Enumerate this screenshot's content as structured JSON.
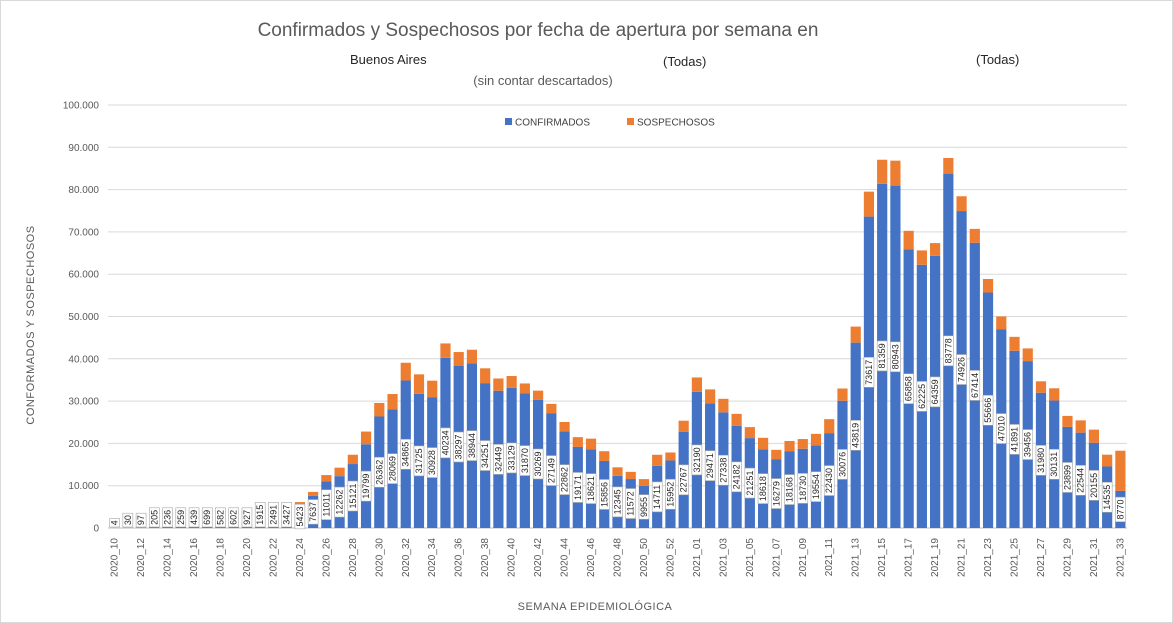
{
  "chart_data": {
    "type": "bar",
    "stacked": true,
    "title": "Confirmados y Sospechosos por fecha de apertura por semana en",
    "filters": [
      "Buenos Aires",
      "(Todas)",
      "(Todas)"
    ],
    "subtitle": "(sin contar descartados)",
    "xlabel": "SEMANA EPIDEMIOLÓGICA",
    "ylabel": "CONFORMADOS  Y SOSPECHOSOS",
    "ylim": [
      0,
      100000
    ],
    "yticks": [
      "0",
      "10.000",
      "20.000",
      "30.000",
      "40.000",
      "50.000",
      "60.000",
      "70.000",
      "80.000",
      "90.000",
      "100.000"
    ],
    "legend_position": "top-center",
    "grid": true,
    "categories": [
      "2020_10",
      "2020_11",
      "2020_12",
      "2020_13",
      "2020_14",
      "2020_15",
      "2020_16",
      "2020_17",
      "2020_18",
      "2020_19",
      "2020_20",
      "2020_21",
      "2020_22",
      "2020_23",
      "2020_24",
      "2020_25",
      "2020_26",
      "2020_27",
      "2020_28",
      "2020_29",
      "2020_30",
      "2020_31",
      "2020_32",
      "2020_33",
      "2020_34",
      "2020_35",
      "2020_36",
      "2020_37",
      "2020_38",
      "2020_39",
      "2020_40",
      "2020_41",
      "2020_42",
      "2020_43",
      "2020_44",
      "2020_45",
      "2020_46",
      "2020_47",
      "2020_48",
      "2020_49",
      "2020_50",
      "2020_51",
      "2020_52",
      "2020_53",
      "2021_01",
      "2021_02",
      "2021_03",
      "2021_04",
      "2021_05",
      "2021_06",
      "2021_07",
      "2021_08",
      "2021_09",
      "2021_10",
      "2021_11",
      "2021_12",
      "2021_13",
      "2021_14",
      "2021_15",
      "2021_16",
      "2021_17",
      "2021_18",
      "2021_19",
      "2021_20",
      "2021_21",
      "2021_22",
      "2021_23",
      "2021_24",
      "2021_25",
      "2021_26",
      "2021_27",
      "2021_28",
      "2021_29",
      "2021_30",
      "2021_31",
      "2021_32",
      "2021_33"
    ],
    "xtick_labels": [
      "2020_10",
      "2020_12",
      "2020_14",
      "2020_16",
      "2020_18",
      "2020_20",
      "2020_22",
      "2020_24",
      "2020_26",
      "2020_28",
      "2020_30",
      "2020_32",
      "2020_34",
      "2020_36",
      "2020_38",
      "2020_40",
      "2020_42",
      "2020_44",
      "2020_46",
      "2020_48",
      "2020_50",
      "2020_52",
      "2021_01",
      "2021_03",
      "2021_05",
      "2021_07",
      "2021_09",
      "2021_11",
      "2021_13",
      "2021_15",
      "2021_17",
      "2021_19",
      "2021_21",
      "2021_23",
      "2021_25",
      "2021_27",
      "2021_29",
      "2021_31",
      "2021_33"
    ],
    "series": [
      {
        "name": "CONFIRMADOS",
        "color": "#4472c4",
        "values": [
          4,
          30,
          97,
          205,
          236,
          259,
          439,
          699,
          582,
          602,
          927,
          1915,
          2491,
          3427,
          5423,
          7637,
          11011,
          12262,
          15121,
          19799,
          26362,
          28069,
          34865,
          31725,
          30928,
          40234,
          38297,
          38944,
          34251,
          32449,
          33129,
          31870,
          30269,
          27149,
          22862,
          19171,
          18621,
          15856,
          12345,
          11572,
          9955,
          14711,
          15952,
          22767,
          32190,
          29471,
          27338,
          24182,
          21251,
          18618,
          16279,
          18168,
          18730,
          19554,
          22430,
          30076,
          43819,
          73617,
          81359,
          80943,
          65858,
          62225,
          64359,
          83778,
          74926,
          67414,
          55666,
          47010,
          41891,
          39456,
          31980,
          30131,
          23899,
          22544,
          20155,
          14535,
          8770
        ]
      },
      {
        "name": "SOSPECHOSOS",
        "color": "#ed7d31",
        "values": [
          0,
          0,
          0,
          0,
          0,
          0,
          0,
          0,
          0,
          0,
          0,
          0,
          0,
          0,
          700,
          900,
          1500,
          2000,
          2200,
          3000,
          3200,
          3600,
          4200,
          4600,
          3900,
          3400,
          3300,
          3200,
          3500,
          2900,
          2800,
          2300,
          2200,
          2200,
          2200,
          2300,
          2500,
          2300,
          2000,
          1700,
          1600,
          2600,
          1900,
          2600,
          3400,
          3300,
          3200,
          2800,
          2600,
          2700,
          2200,
          2400,
          2300,
          2700,
          3300,
          2900,
          3800,
          5900,
          5700,
          5900,
          4400,
          3400,
          3000,
          3700,
          3500,
          3300,
          3200,
          3000,
          3300,
          3000,
          2700,
          2900,
          2600,
          2900,
          3100,
          2800,
          9500
        ]
      }
    ],
    "data_labels": "CONFIRMADOS"
  }
}
